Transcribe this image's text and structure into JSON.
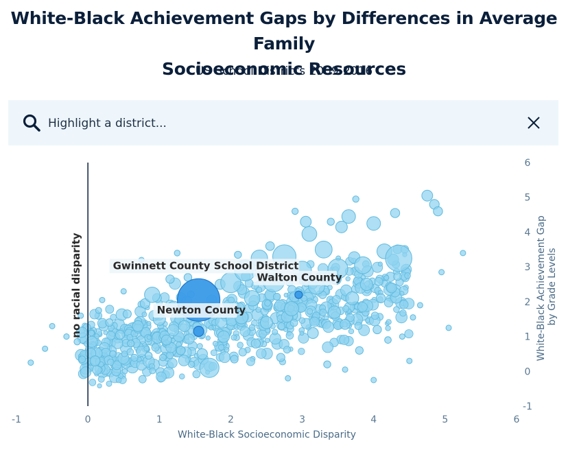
{
  "header": {
    "title_line1": "White-Black Achievement Gaps by Differences in Average Family",
    "title_line2": "Socioeconomic Resources",
    "subtitle": "US School Districts 2009-2016"
  },
  "search": {
    "placeholder": "Highlight a district...",
    "value": "",
    "icon": "search-icon",
    "clear_icon": "close-icon"
  },
  "colors": {
    "bubble_fill": "#8fd3f0",
    "bubble_stroke": "#5fb9de",
    "highlight_fill": "#3a9ae8",
    "highlight_stroke": "#1f77c8",
    "reference_line": "#0b1f3a",
    "label_bg": "#eef6fb"
  },
  "chart_data": {
    "type": "scatter",
    "title": "White-Black Achievement Gaps by Differences in Average Family Socioeconomic Resources",
    "subtitle": "US School Districts 2009-2016",
    "xlabel": "White-Black Socioeconomic Disparity",
    "ylabel": "White-Black Achievement Gap by Grade Levels",
    "xlim": [
      -1,
      6
    ],
    "ylim": [
      -1,
      6
    ],
    "x_ticks": [
      "-1",
      "0",
      "1",
      "2",
      "3",
      "4",
      "5",
      "6"
    ],
    "y_ticks": [
      "-1",
      "0",
      "1",
      "2",
      "3",
      "4",
      "5",
      "6"
    ],
    "y_axis_side": "right",
    "grid": false,
    "reference_line": {
      "x": 0,
      "label": "no racial disparity"
    },
    "highlighted": [
      {
        "name": "Gwinnett County School District",
        "x": 1.55,
        "y": 2.05,
        "size": 180000
      },
      {
        "name": "Newton County",
        "x": 1.55,
        "y": 1.15,
        "size": 19000
      },
      {
        "name": "Walton County",
        "x": 2.95,
        "y": 2.2,
        "size": 13000
      }
    ],
    "districts": [
      {
        "x": -0.8,
        "y": 0.25,
        "size": 1500
      },
      {
        "x": -0.6,
        "y": 0.65,
        "size": 1200
      },
      {
        "x": -0.5,
        "y": 1.3,
        "size": 1600
      },
      {
        "x": -0.3,
        "y": 1.0,
        "size": 1800
      },
      {
        "x": -0.15,
        "y": 0.85,
        "size": 2400
      },
      {
        "x": -0.1,
        "y": 1.6,
        "size": 1500
      },
      {
        "x": 0.05,
        "y": 1.1,
        "size": 2000
      },
      {
        "x": 0.1,
        "y": 0.3,
        "size": 6000
      },
      {
        "x": 0.15,
        "y": 1.75,
        "size": 2200
      },
      {
        "x": 0.2,
        "y": 2.05,
        "size": 1400
      },
      {
        "x": 0.3,
        "y": 1.4,
        "size": 3500
      },
      {
        "x": 0.35,
        "y": 0.5,
        "size": 2600
      },
      {
        "x": 0.45,
        "y": 1.05,
        "size": 5000
      },
      {
        "x": 0.5,
        "y": 2.3,
        "size": 1600
      },
      {
        "x": 0.55,
        "y": 1.65,
        "size": 4000
      },
      {
        "x": 0.6,
        "y": 0.8,
        "size": 2800
      },
      {
        "x": 0.7,
        "y": 1.3,
        "size": 7000
      },
      {
        "x": 0.75,
        "y": 3.2,
        "size": 1500
      },
      {
        "x": 0.8,
        "y": 1.95,
        "size": 5500
      },
      {
        "x": 0.85,
        "y": 0.45,
        "size": 3000
      },
      {
        "x": 0.9,
        "y": 2.2,
        "size": 14000
      },
      {
        "x": 1.0,
        "y": 1.5,
        "size": 9000
      },
      {
        "x": 1.05,
        "y": 0.4,
        "size": 2600
      },
      {
        "x": 1.1,
        "y": 0.9,
        "size": 6000
      },
      {
        "x": 1.15,
        "y": 2.65,
        "size": 4200
      },
      {
        "x": 1.2,
        "y": 1.85,
        "size": 8000
      },
      {
        "x": 1.25,
        "y": 3.4,
        "size": 2000
      },
      {
        "x": 1.3,
        "y": 0.6,
        "size": 4500
      },
      {
        "x": 1.35,
        "y": 1.3,
        "size": 7500
      },
      {
        "x": 1.4,
        "y": 2.7,
        "size": 3600
      },
      {
        "x": 1.45,
        "y": 0.2,
        "size": 2400
      },
      {
        "x": 1.6,
        "y": 0.5,
        "size": 6500
      },
      {
        "x": 1.7,
        "y": 0.1,
        "size": 22000
      },
      {
        "x": 1.75,
        "y": 1.8,
        "size": 9000
      },
      {
        "x": 1.85,
        "y": 2.5,
        "size": 6000
      },
      {
        "x": 1.9,
        "y": 1.0,
        "size": 8000
      },
      {
        "x": 2.0,
        "y": 2.55,
        "size": 24000
      },
      {
        "x": 2.05,
        "y": 0.35,
        "size": 3500
      },
      {
        "x": 2.1,
        "y": 3.35,
        "size": 3000
      },
      {
        "x": 2.15,
        "y": 1.55,
        "size": 10000
      },
      {
        "x": 2.2,
        "y": 2.9,
        "size": 26000
      },
      {
        "x": 2.3,
        "y": 2.1,
        "size": 14000
      },
      {
        "x": 2.35,
        "y": 0.8,
        "size": 5000
      },
      {
        "x": 2.4,
        "y": 3.25,
        "size": 16000
      },
      {
        "x": 2.5,
        "y": 1.4,
        "size": 9000
      },
      {
        "x": 2.55,
        "y": 3.6,
        "size": 4500
      },
      {
        "x": 2.6,
        "y": 2.6,
        "size": 28000
      },
      {
        "x": 2.7,
        "y": 0.4,
        "size": 4000
      },
      {
        "x": 2.75,
        "y": 3.3,
        "size": 32000
      },
      {
        "x": 2.85,
        "y": 1.8,
        "size": 12000
      },
      {
        "x": 2.9,
        "y": 4.6,
        "size": 2400
      },
      {
        "x": 3.0,
        "y": 2.9,
        "size": 20000
      },
      {
        "x": 3.05,
        "y": 4.3,
        "size": 7000
      },
      {
        "x": 3.1,
        "y": 3.95,
        "size": 13000
      },
      {
        "x": 3.15,
        "y": 1.1,
        "size": 7000
      },
      {
        "x": 3.2,
        "y": 2.45,
        "size": 16000
      },
      {
        "x": 3.3,
        "y": 3.5,
        "size": 17000
      },
      {
        "x": 3.35,
        "y": 0.2,
        "size": 3000
      },
      {
        "x": 3.4,
        "y": 4.3,
        "size": 3000
      },
      {
        "x": 3.45,
        "y": 1.7,
        "size": 9000
      },
      {
        "x": 3.5,
        "y": 2.95,
        "size": 23000
      },
      {
        "x": 3.55,
        "y": 4.15,
        "size": 8000
      },
      {
        "x": 3.6,
        "y": 1.35,
        "size": 6000
      },
      {
        "x": 3.65,
        "y": 4.45,
        "size": 11000
      },
      {
        "x": 3.7,
        "y": 2.1,
        "size": 10000
      },
      {
        "x": 3.75,
        "y": 4.95,
        "size": 2400
      },
      {
        "x": 3.8,
        "y": 0.6,
        "size": 3500
      },
      {
        "x": 3.85,
        "y": 3.05,
        "size": 17000
      },
      {
        "x": 3.9,
        "y": 2.5,
        "size": 9000
      },
      {
        "x": 4.0,
        "y": 4.25,
        "size": 11000
      },
      {
        "x": 4.05,
        "y": 1.2,
        "size": 4200
      },
      {
        "x": 4.1,
        "y": 2.1,
        "size": 5000
      },
      {
        "x": 4.15,
        "y": 3.45,
        "size": 13000
      },
      {
        "x": 4.2,
        "y": 0.9,
        "size": 2600
      },
      {
        "x": 4.25,
        "y": 2.4,
        "size": 6000
      },
      {
        "x": 4.3,
        "y": 4.55,
        "size": 5000
      },
      {
        "x": 4.35,
        "y": 3.25,
        "size": 41000
      },
      {
        "x": 4.4,
        "y": 1.0,
        "size": 1700
      },
      {
        "x": 4.5,
        "y": 0.3,
        "size": 1500
      },
      {
        "x": 4.55,
        "y": 1.55,
        "size": 1500
      },
      {
        "x": 4.65,
        "y": 1.9,
        "size": 1500
      },
      {
        "x": 4.75,
        "y": 5.05,
        "size": 7000
      },
      {
        "x": 4.85,
        "y": 4.8,
        "size": 5500
      },
      {
        "x": 4.9,
        "y": 4.6,
        "size": 5000
      },
      {
        "x": 4.95,
        "y": 2.85,
        "size": 1500
      },
      {
        "x": 5.05,
        "y": 1.25,
        "size": 1500
      },
      {
        "x": 5.25,
        "y": 3.4,
        "size": 1500
      },
      {
        "x": 4.0,
        "y": -0.25,
        "size": 1500
      },
      {
        "x": 3.6,
        "y": 0.05,
        "size": 1400
      },
      {
        "x": 2.8,
        "y": -0.2,
        "size": 1400
      }
    ]
  }
}
